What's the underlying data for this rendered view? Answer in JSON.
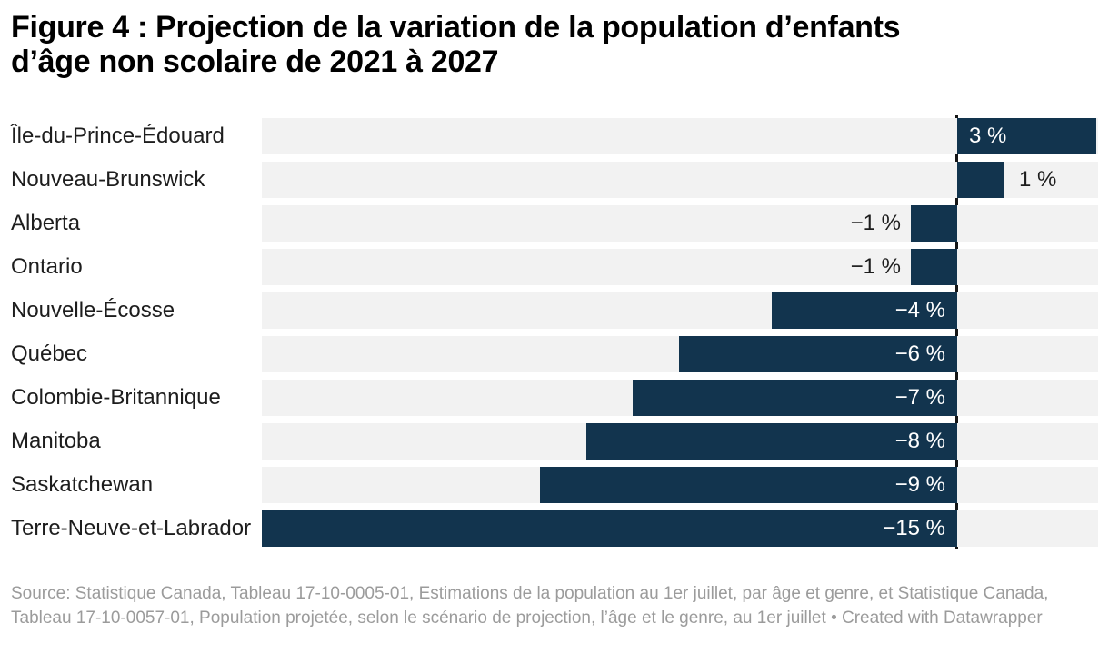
{
  "title": {
    "text": "Figure 4 : Projection de la variation de la population d’enfants d’âge non scolaire de 2021 à 2027"
  },
  "chart_data": {
    "type": "bar",
    "orientation": "horizontal",
    "title": "Figure 4 : Projection de la variation de la population d’enfants d’âge non scolaire de 2021 à 2027",
    "unit": "%",
    "categories": [
      "Île-du-Prince-Édouard",
      "Nouveau-Brunswick",
      "Alberta",
      "Ontario",
      "Nouvelle-Écosse",
      "Québec",
      "Colombie-Britannique",
      "Manitoba",
      "Saskatchewan",
      "Terre-Neuve-et-Labrador"
    ],
    "values": [
      3,
      1,
      -1,
      -1,
      -4,
      -6,
      -7,
      -8,
      -9,
      -15
    ],
    "value_labels": [
      "3 %",
      "1 %",
      "−1 %",
      "−1 %",
      "−4 %",
      "−6 %",
      "−7 %",
      "−8 %",
      "−9 %",
      "−15 %"
    ],
    "label_placements": [
      "inside-start",
      "outside-right",
      "outside-left",
      "outside-left",
      "inside-end",
      "inside-end",
      "inside-end",
      "inside-end",
      "inside-end",
      "inside-end"
    ],
    "xlim": [
      -15,
      3.05
    ],
    "baseline": 0,
    "grid": false,
    "legend": "none",
    "style": {
      "bar_color": "#12344e",
      "track_color": "#f2f2f2",
      "baseline_color": "#161616",
      "label_color": "#1d1d1d",
      "inside_label_color": "#ffffff",
      "footer_color": "#9b9b9b"
    }
  },
  "footer": {
    "source_text": "Source: Statistique Canada, Tableau 17-10-0005-01, Estimations de la population au 1er juillet, par âge et genre, et Statistique Canada, Tableau 17-10-0057-01, Population projetée, selon le scénario de projection, l’âge et le genre, au 1er juillet",
    "separator": "•",
    "credit_label": "Created with Datawrapper"
  }
}
